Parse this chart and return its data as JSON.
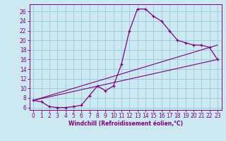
{
  "xlabel": "Windchill (Refroidissement éolien,°C)",
  "bg_color": "#cce8f0",
  "grid_color": "#9ecfdf",
  "line_color": "#800080",
  "xlim": [
    -0.5,
    23.5
  ],
  "ylim": [
    5.5,
    27.5
  ],
  "yticks": [
    6,
    8,
    10,
    12,
    14,
    16,
    18,
    20,
    22,
    24,
    26
  ],
  "xticks": [
    0,
    1,
    2,
    3,
    4,
    5,
    6,
    7,
    8,
    9,
    10,
    11,
    12,
    13,
    14,
    15,
    16,
    17,
    18,
    19,
    20,
    21,
    22,
    23
  ],
  "line1_x": [
    0,
    1,
    2,
    3,
    4,
    5,
    6,
    7,
    8,
    9,
    10,
    11,
    12,
    13,
    14,
    15,
    16,
    17,
    18,
    19,
    20,
    21,
    22,
    23
  ],
  "line1_y": [
    7.5,
    7.2,
    6.2,
    6.0,
    6.0,
    6.2,
    6.5,
    8.5,
    10.5,
    9.5,
    10.5,
    15.0,
    22.0,
    26.5,
    26.5,
    25.0,
    24.0,
    22.0,
    20.0,
    19.5,
    19.0,
    19.0,
    18.5,
    16.0
  ],
  "line2_x": [
    0,
    23
  ],
  "line2_y": [
    7.5,
    19.0
  ],
  "line3_x": [
    0,
    23
  ],
  "line3_y": [
    7.5,
    16.0
  ],
  "tick_fontsize": 5.5,
  "xlabel_fontsize": 5.5,
  "xlabel_fontweight": "bold"
}
